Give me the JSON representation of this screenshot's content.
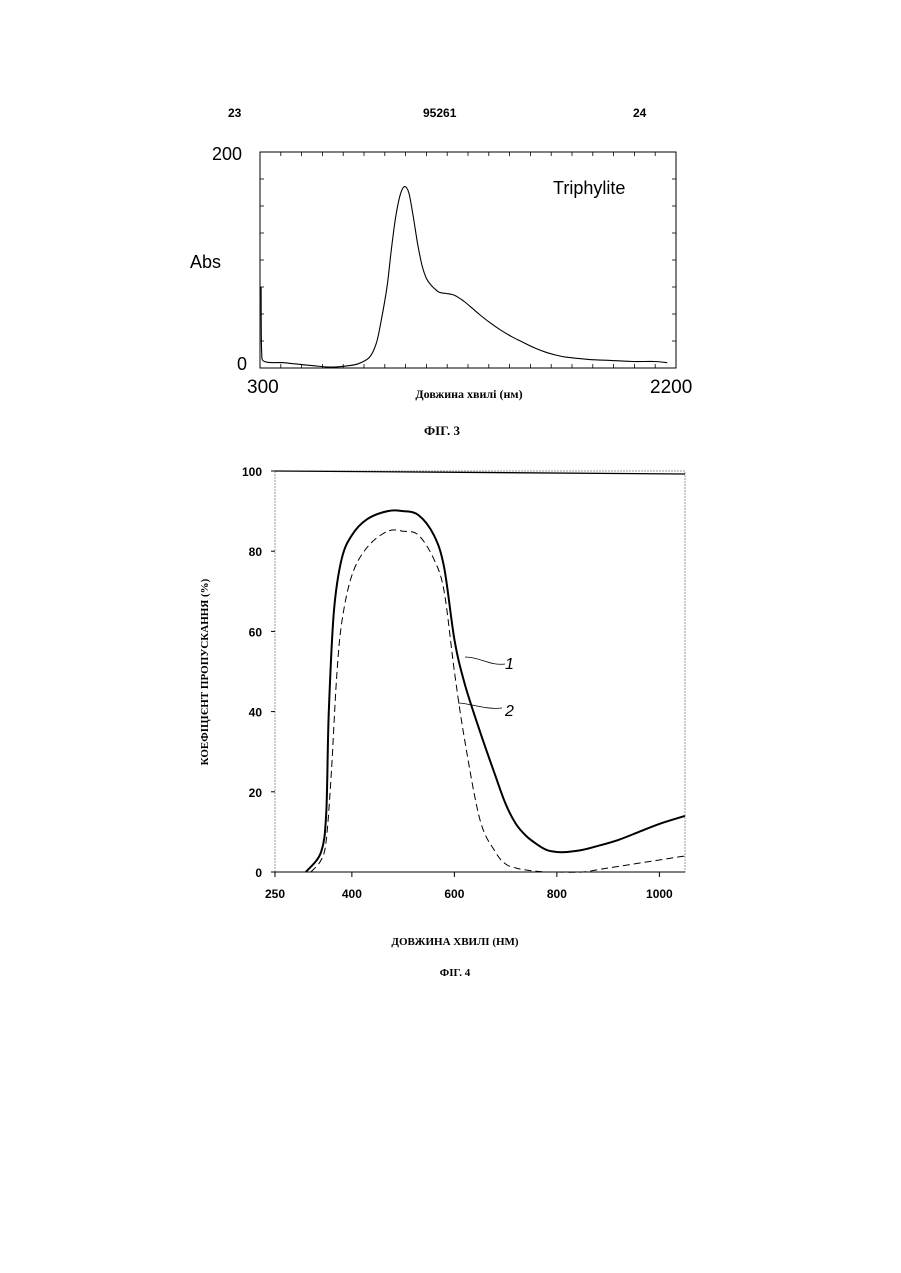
{
  "page": {
    "left_number": "23",
    "center_number": "95261",
    "right_number": "24"
  },
  "chart_data": [
    {
      "type": "line",
      "title": "",
      "ylabel": "Abs",
      "xlabel": "Довжина хвилі (нм)",
      "caption": "ФІГ. 3",
      "xlim": [
        300,
        2200
      ],
      "ylim": [
        0,
        200
      ],
      "x_tick_labels": [
        "300",
        "2200"
      ],
      "y_tick_labels": [
        "0",
        "200"
      ],
      "annotation": "Triphylite",
      "grid": false,
      "series": [
        {
          "name": "Triphylite",
          "x": [
            305,
            306,
            308,
            310,
            320,
            350,
            400,
            450,
            500,
            550,
            600,
            650,
            700,
            750,
            800,
            830,
            850,
            880,
            900,
            920,
            940,
            960,
            980,
            1000,
            1020,
            1040,
            1060,
            1080,
            1100,
            1120,
            1150,
            1180,
            1200,
            1230,
            1260,
            1300,
            1350,
            1400,
            1450,
            1500,
            1550,
            1600,
            1650,
            1700,
            1800,
            1900,
            2000,
            2100,
            2160
          ],
          "y": [
            75,
            30,
            12,
            8,
            6,
            5,
            5,
            4,
            3,
            2,
            1,
            1,
            2,
            4,
            10,
            22,
            40,
            75,
            110,
            140,
            160,
            168,
            162,
            140,
            115,
            95,
            83,
            77,
            73,
            70,
            69,
            68,
            66,
            62,
            57,
            50,
            42,
            35,
            29,
            24,
            19,
            15,
            12,
            10,
            8,
            7,
            6,
            6,
            5
          ]
        }
      ]
    },
    {
      "type": "line",
      "title": "",
      "ylabel": "КОЕФІЦІЄНТ ПРОПУСКАННЯ (%)",
      "xlabel": "ДОВЖИНА ХВИЛІ (НМ)",
      "caption": "ФІГ. 4",
      "xlim": [
        250,
        1050
      ],
      "ylim": [
        0,
        100
      ],
      "x_ticks": [
        250,
        400,
        600,
        800,
        1000
      ],
      "y_ticks": [
        0,
        20,
        40,
        60,
        80,
        100
      ],
      "x_tick_labels": [
        "250",
        "400",
        "600",
        "800",
        "1000"
      ],
      "y_tick_labels": [
        "0",
        "20",
        "40",
        "60",
        "80",
        "100"
      ],
      "grid": false,
      "annotations": [
        "1",
        "2"
      ],
      "series": [
        {
          "name": "1",
          "x": [
            310,
            340,
            350,
            355,
            365,
            380,
            400,
            430,
            470,
            500,
            530,
            560,
            580,
            600,
            620,
            650,
            680,
            700,
            720,
            740,
            760,
            780,
            800,
            820,
            850,
            880,
            920,
            960,
            1000,
            1050
          ],
          "y": [
            0,
            5,
            15,
            40,
            65,
            78,
            84,
            88,
            90,
            90,
            89,
            84,
            76,
            58,
            47,
            35,
            24,
            17,
            12,
            9,
            7,
            5.5,
            5,
            5,
            5.5,
            6.5,
            8,
            10,
            12,
            14
          ]
        },
        {
          "name": "2",
          "x": [
            320,
            340,
            350,
            360,
            370,
            380,
            400,
            430,
            470,
            500,
            530,
            560,
            580,
            600,
            620,
            650,
            680,
            700,
            720,
            740,
            760,
            780,
            800,
            850,
            900,
            950,
            1000,
            1050
          ],
          "y": [
            0,
            3,
            8,
            25,
            48,
            62,
            74,
            81,
            85,
            85,
            84,
            78,
            70,
            50,
            33,
            13,
            5,
            2,
            1,
            0.5,
            0.2,
            0,
            0,
            0,
            1,
            2,
            3,
            4
          ]
        }
      ]
    }
  ]
}
